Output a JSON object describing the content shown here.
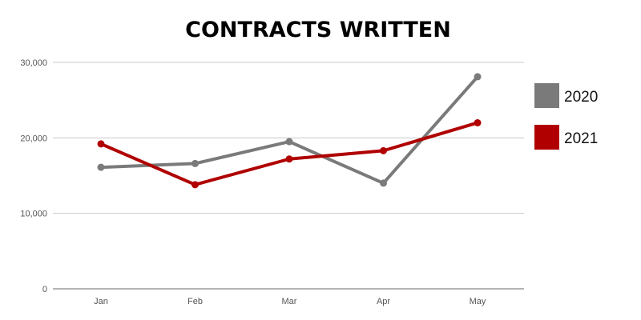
{
  "chart_data": {
    "type": "line",
    "title": "CONTRACTS WRITTEN",
    "xlabel": "",
    "ylabel": "",
    "categories": [
      "Jan",
      "Feb",
      "Mar",
      "Apr",
      "May"
    ],
    "ylim": [
      0,
      30000
    ],
    "yticks": [
      0,
      10000,
      20000,
      30000
    ],
    "ytick_labels": [
      "0",
      "10,000",
      "20,000",
      "30,000"
    ],
    "grid": true,
    "legend_position": "right",
    "series": [
      {
        "name": "2020",
        "color": "#7a7a7a",
        "values": [
          16100,
          16600,
          19500,
          14000,
          28100
        ]
      },
      {
        "name": "2021",
        "color": "#b00000",
        "values": [
          19200,
          13800,
          17200,
          18300,
          22000
        ]
      }
    ]
  }
}
